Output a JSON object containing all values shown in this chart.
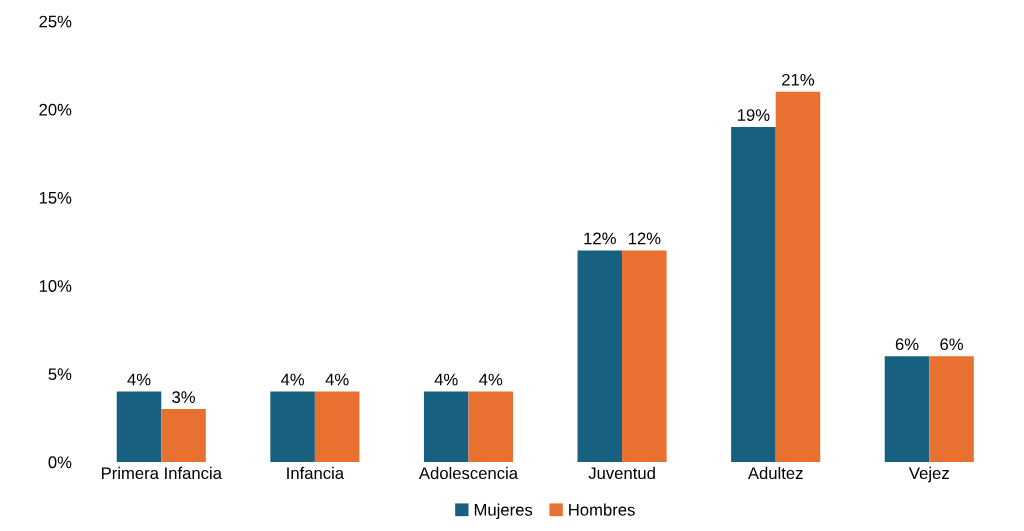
{
  "chart_data": {
    "type": "bar",
    "categories": [
      "Primera Infancia",
      "Infancia",
      "Adolescencia",
      "Juventud",
      "Adultez",
      "Vejez"
    ],
    "series": [
      {
        "name": "Mujeres",
        "color": "#17607f",
        "values": [
          4,
          4,
          4,
          12,
          19,
          6
        ],
        "value_labels": [
          "4%",
          "4%",
          "4%",
          "12%",
          "19%",
          "6%"
        ]
      },
      {
        "name": "Hombres",
        "color": "#e87131",
        "values": [
          3,
          4,
          4,
          12,
          21,
          6
        ],
        "value_labels": [
          "3%",
          "4%",
          "4%",
          "12%",
          "21%",
          "6%"
        ]
      }
    ],
    "ylim": [
      0,
      25
    ],
    "yticks": [
      {
        "value": 0,
        "label": "0%"
      },
      {
        "value": 5,
        "label": "5%"
      },
      {
        "value": 10,
        "label": "10%"
      },
      {
        "value": 15,
        "label": "15%"
      },
      {
        "value": 20,
        "label": "20%"
      },
      {
        "value": 25,
        "label": "25%"
      }
    ],
    "grid": false,
    "legend": "bottom"
  }
}
